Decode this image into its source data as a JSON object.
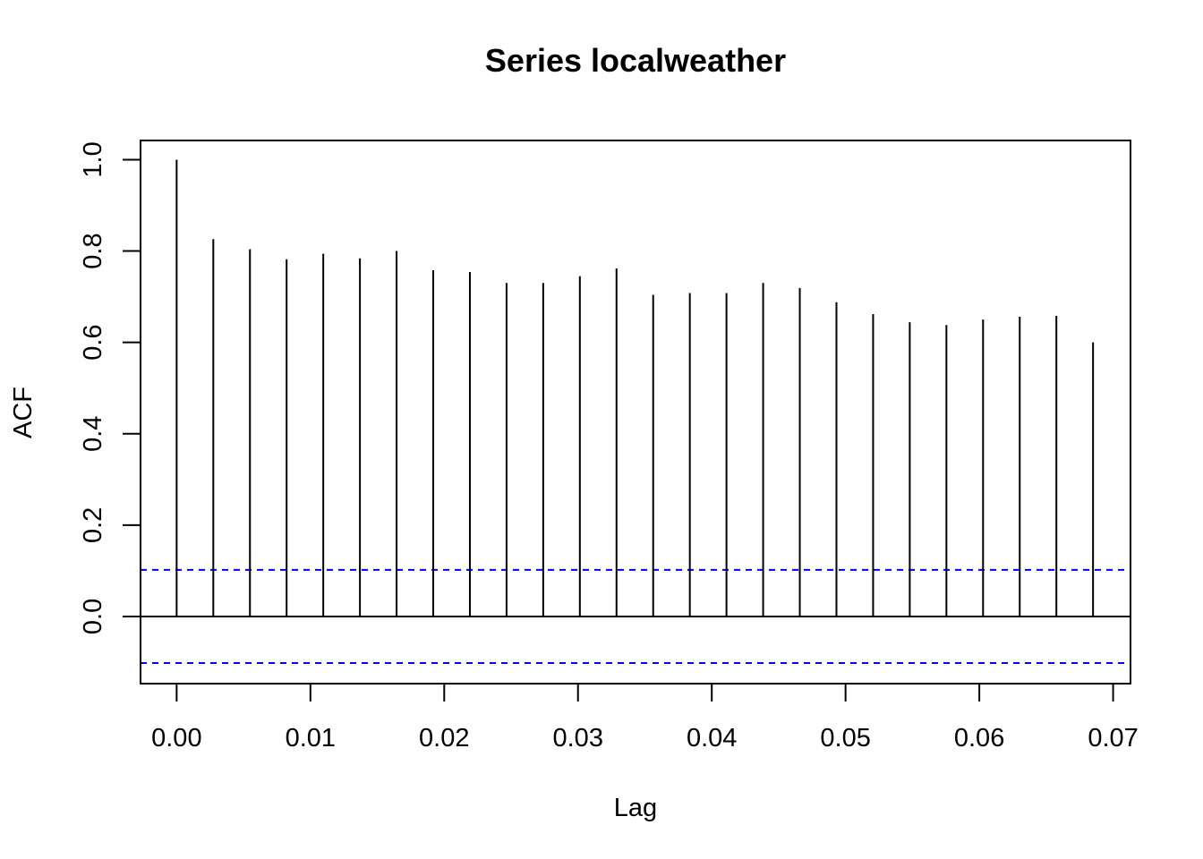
{
  "chart_data": {
    "type": "bar",
    "title": "Series  localweather",
    "xlabel": "Lag",
    "ylabel": "ACF",
    "xlim": [
      -0.0027,
      0.0713
    ],
    "ylim": [
      -0.147,
      1.042
    ],
    "xticks": [
      "0.00",
      "0.01",
      "0.02",
      "0.03",
      "0.04",
      "0.05",
      "0.06",
      "0.07"
    ],
    "yticks": [
      "0.0",
      "0.2",
      "0.4",
      "0.6",
      "0.8",
      "1.0"
    ],
    "confidence_band": 0.102,
    "band_color": "#0000ff",
    "grid": false,
    "x": [
      0.0,
      0.00274,
      0.00548,
      0.00822,
      0.01096,
      0.0137,
      0.01644,
      0.01918,
      0.02192,
      0.02466,
      0.0274,
      0.03014,
      0.03288,
      0.03562,
      0.03836,
      0.0411,
      0.04384,
      0.04658,
      0.04932,
      0.05206,
      0.0548,
      0.05754,
      0.06028,
      0.06302,
      0.06576,
      0.0685
    ],
    "values": [
      1.0,
      0.826,
      0.804,
      0.782,
      0.794,
      0.784,
      0.8,
      0.758,
      0.754,
      0.73,
      0.73,
      0.745,
      0.762,
      0.704,
      0.708,
      0.708,
      0.73,
      0.719,
      0.688,
      0.662,
      0.644,
      0.638,
      0.65,
      0.656,
      0.658,
      0.6
    ]
  }
}
